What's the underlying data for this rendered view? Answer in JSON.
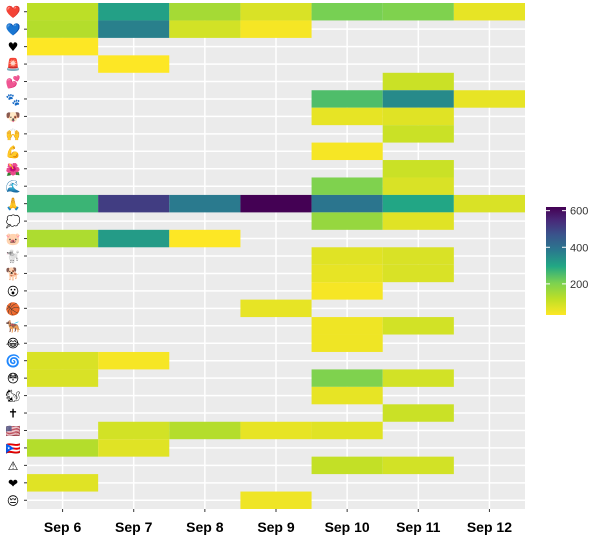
{
  "chart_data": {
    "type": "heatmap",
    "title": "",
    "xlabel": "",
    "ylabel": "",
    "x_categories": [
      "Sep 6",
      "Sep 7",
      "Sep 8",
      "Sep 9",
      "Sep 10",
      "Sep 11",
      "Sep 12"
    ],
    "y_categories": [
      "❤️",
      "💙",
      "♥",
      "🚨",
      "💕",
      "🐾",
      "🐶",
      "🙌",
      "💪",
      "🌺",
      "🌊",
      "🙏",
      "💭",
      "🐷",
      "🐩",
      "🐕",
      "😮",
      "🏀",
      "🐕‍🦺",
      "😂",
      "🌀",
      "😳",
      "🐿",
      "✝",
      "🇺🇸",
      "🇵🇷",
      "⚠",
      "❤",
      "😔"
    ],
    "values": [
      [
        120,
        310,
        150,
        80,
        210,
        200,
        60
      ],
      [
        130,
        370,
        90,
        40,
        null,
        null,
        null
      ],
      [
        30,
        null,
        null,
        null,
        null,
        null,
        null
      ],
      [
        null,
        30,
        null,
        null,
        null,
        null,
        null
      ],
      [
        null,
        null,
        null,
        null,
        null,
        100,
        null
      ],
      [
        null,
        null,
        null,
        null,
        250,
        350,
        60
      ],
      [
        null,
        null,
        null,
        null,
        60,
        70,
        null
      ],
      [
        null,
        null,
        null,
        null,
        null,
        100,
        null
      ],
      [
        null,
        null,
        null,
        null,
        40,
        null,
        null
      ],
      [
        null,
        null,
        null,
        null,
        null,
        100,
        null
      ],
      [
        null,
        null,
        null,
        null,
        200,
        80,
        null
      ],
      [
        270,
        510,
        380,
        620,
        390,
        300,
        80
      ],
      [
        null,
        null,
        null,
        null,
        170,
        70,
        null
      ],
      [
        140,
        320,
        30,
        null,
        null,
        null,
        null
      ],
      [
        null,
        null,
        null,
        null,
        70,
        80,
        null
      ],
      [
        null,
        null,
        null,
        null,
        60,
        80,
        null
      ],
      [
        null,
        null,
        null,
        null,
        40,
        null,
        null
      ],
      [
        null,
        null,
        null,
        60,
        null,
        null,
        null
      ],
      [
        null,
        null,
        null,
        null,
        50,
        90,
        null
      ],
      [
        null,
        null,
        null,
        null,
        50,
        null,
        null
      ],
      [
        80,
        40,
        null,
        null,
        null,
        null,
        null
      ],
      [
        80,
        null,
        null,
        null,
        200,
        90,
        null
      ],
      [
        null,
        null,
        null,
        null,
        60,
        null,
        null
      ],
      [
        null,
        null,
        null,
        null,
        null,
        100,
        null
      ],
      [
        null,
        90,
        130,
        60,
        70,
        null,
        null
      ],
      [
        130,
        70,
        null,
        null,
        null,
        null,
        null
      ],
      [
        null,
        null,
        null,
        null,
        110,
        90,
        null
      ],
      [
        70,
        null,
        null,
        null,
        null,
        null,
        null
      ],
      [
        null,
        null,
        null,
        50,
        null,
        null,
        null
      ]
    ],
    "color_range": [
      30,
      620
    ],
    "color_scale": "viridis",
    "colors": {
      "panel": "#ebebeb",
      "grid": "#ffffff"
    },
    "legend": {
      "position": "right",
      "ticks": [
        200,
        400,
        600
      ]
    }
  }
}
